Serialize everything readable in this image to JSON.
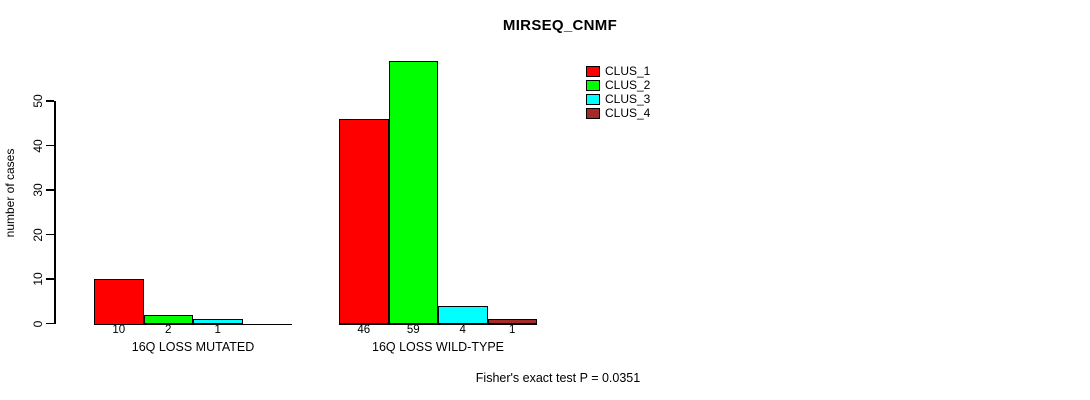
{
  "chart_data": {
    "type": "bar",
    "title": "MIRSEQ_CNMF",
    "xlabel": "",
    "ylabel": "number of cases",
    "ylim": [
      0,
      59
    ],
    "yticks": [
      0,
      10,
      20,
      30,
      40,
      50
    ],
    "grid": false,
    "legend_position": "right-of-plot",
    "bar_borders": "#000000",
    "groups": [
      {
        "label": "16Q LOSS MUTATED",
        "values": [
          10,
          2,
          1,
          0
        ]
      },
      {
        "label": "16Q LOSS WILD-TYPE",
        "values": [
          46,
          59,
          4,
          1
        ]
      }
    ],
    "series": [
      {
        "name": "CLUS_1",
        "color": "#FF0000"
      },
      {
        "name": "CLUS_2",
        "color": "#00FF00"
      },
      {
        "name": "CLUS_3",
        "color": "#00FFFF"
      },
      {
        "name": "CLUS_4",
        "color": "#A52A2A"
      }
    ],
    "value_labels": {
      "shown": true,
      "hide_zero": true
    },
    "annotation": "Fisher's exact test P = 0.0351"
  }
}
